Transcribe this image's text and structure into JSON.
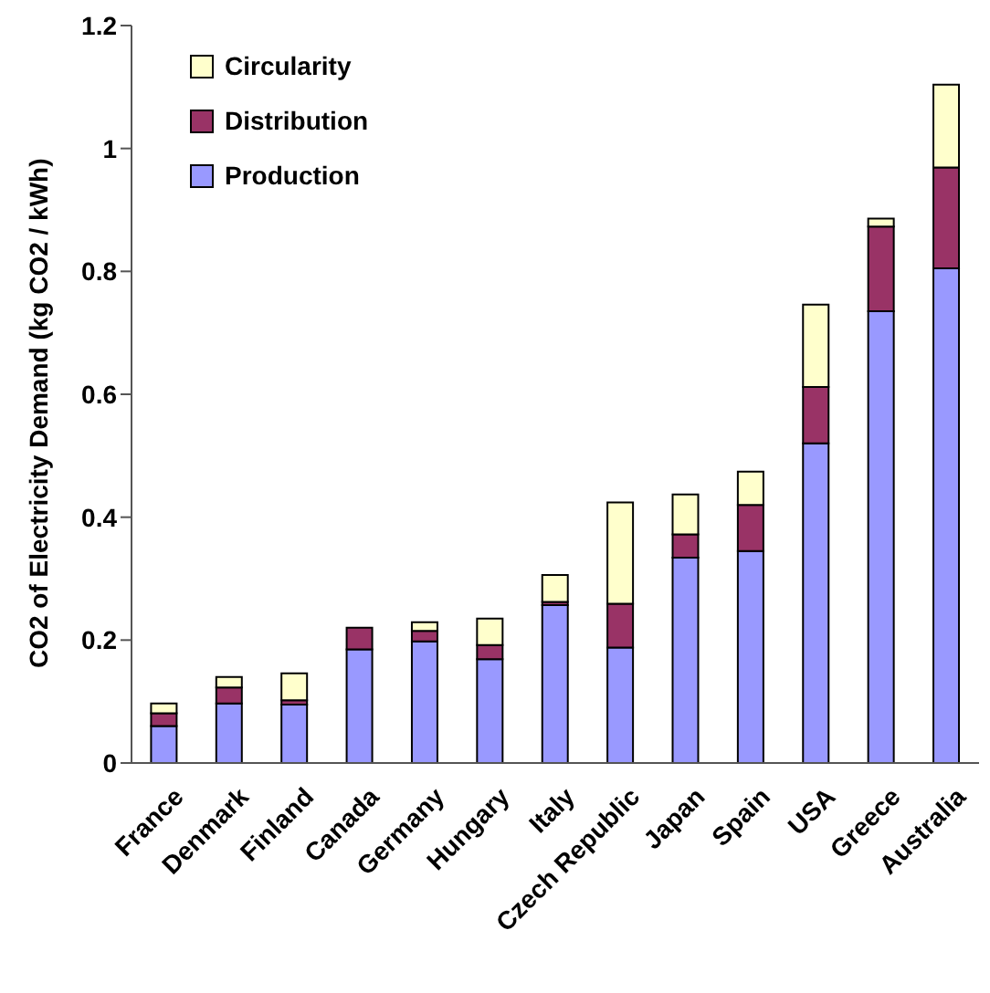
{
  "chart_data": {
    "type": "bar",
    "ylabel": "CO2 of Electricity Demand (kg CO2 / kWh)",
    "categories": [
      "France",
      "Denmark",
      "Finland",
      "Canada",
      "Germany",
      "Hungary",
      "Italy",
      "Czech Republic",
      "Japan",
      "Spain",
      "USA",
      "Greece",
      "Australia"
    ],
    "series": [
      {
        "name": "Production",
        "color": "#9999ff",
        "values": [
          0.06,
          0.097,
          0.095,
          0.185,
          0.198,
          0.169,
          0.257,
          0.188,
          0.334,
          0.345,
          0.52,
          0.735,
          0.805
        ]
      },
      {
        "name": "Distribution",
        "color": "#993366",
        "values": [
          0.021,
          0.026,
          0.007,
          0.035,
          0.017,
          0.023,
          0.005,
          0.071,
          0.038,
          0.075,
          0.092,
          0.138,
          0.164
        ]
      },
      {
        "name": "Circularity",
        "color": "#ffffcc",
        "values": [
          0.016,
          0.017,
          0.044,
          0,
          0.014,
          0.043,
          0.044,
          0.165,
          0.065,
          0.054,
          0.134,
          0.013,
          0.135
        ]
      }
    ],
    "stacked": true,
    "ylim": [
      0,
      1.2
    ],
    "yticks": [
      0,
      0.2,
      0.4,
      0.6,
      0.8,
      1,
      1.2
    ],
    "grid": false,
    "legend": "top left"
  }
}
